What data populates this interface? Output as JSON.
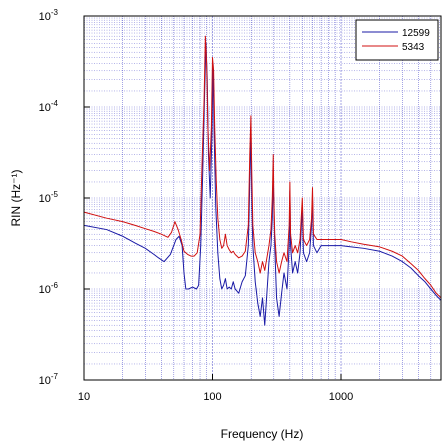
{
  "chart_data": {
    "type": "line",
    "title": "",
    "xlabel": "Frequency (Hz)",
    "ylabel": "RIN (Hz⁻¹)",
    "x_scale": "log",
    "y_scale": "log",
    "xlim": [
      10,
      6000
    ],
    "ylim": [
      1e-07,
      0.001
    ],
    "x_tick_labels": [
      "10",
      "100",
      "1000"
    ],
    "y_tick_labels": [
      {
        "base": "10",
        "exp": "-3"
      },
      {
        "base": "10",
        "exp": "-4"
      },
      {
        "base": "10",
        "exp": "-5"
      },
      {
        "base": "10",
        "exp": "-6"
      },
      {
        "base": "10",
        "exp": "-7"
      }
    ],
    "grid": true,
    "legend": "top-right",
    "series": [
      {
        "name": "12599",
        "color": "#1a1aa6",
        "points": [
          [
            10,
            5e-06
          ],
          [
            15,
            4.5e-06
          ],
          [
            20,
            3.8e-06
          ],
          [
            25,
            3.2e-06
          ],
          [
            30,
            2.8e-06
          ],
          [
            35,
            2.4e-06
          ],
          [
            38,
            2.2e-06
          ],
          [
            42,
            2e-06
          ],
          [
            47,
            2.4e-06
          ],
          [
            52,
            3.5e-06
          ],
          [
            55,
            3.8e-06
          ],
          [
            58,
            3e-06
          ],
          [
            60,
            1.5e-06
          ],
          [
            62,
            1e-06
          ],
          [
            65,
            1e-06
          ],
          [
            70,
            1.05e-06
          ],
          [
            75,
            1e-06
          ],
          [
            78,
            1.1e-06
          ],
          [
            81,
            3e-06
          ],
          [
            84,
            2e-05
          ],
          [
            87,
            0.00016
          ],
          [
            89,
            0.0005
          ],
          [
            91,
            0.0002
          ],
          [
            93,
            3e-05
          ],
          [
            96,
            1e-05
          ],
          [
            99,
            5e-05
          ],
          [
            101,
            0.0003
          ],
          [
            103,
            5e-05
          ],
          [
            106,
            8e-06
          ],
          [
            110,
            2.5e-06
          ],
          [
            114,
            1.3e-06
          ],
          [
            118,
            1e-06
          ],
          [
            122,
            1.1e-06
          ],
          [
            126,
            1.3e-06
          ],
          [
            130,
            1e-06
          ],
          [
            135,
            1.05e-06
          ],
          [
            140,
            1e-06
          ],
          [
            145,
            1.2e-06
          ],
          [
            150,
            1e-06
          ],
          [
            160,
            9e-07
          ],
          [
            170,
            1.2e-06
          ],
          [
            180,
            1.4e-06
          ],
          [
            190,
            3e-06
          ],
          [
            196,
            2e-05
          ],
          [
            199,
            6e-05
          ],
          [
            202,
            1e-05
          ],
          [
            206,
            3e-06
          ],
          [
            215,
            1.2e-06
          ],
          [
            225,
            7e-07
          ],
          [
            235,
            5e-07
          ],
          [
            245,
            8e-07
          ],
          [
            255,
            4e-07
          ],
          [
            265,
            9e-07
          ],
          [
            275,
            2e-06
          ],
          [
            285,
            3e-06
          ],
          [
            292,
            6e-06
          ],
          [
            297,
            2e-05
          ],
          [
            300,
            8e-06
          ],
          [
            305,
            3e-06
          ],
          [
            315,
            8e-07
          ],
          [
            330,
            5e-07
          ],
          [
            345,
            9e-07
          ],
          [
            360,
            1.5e-06
          ],
          [
            380,
            1e-06
          ],
          [
            395,
            3e-06
          ],
          [
            400,
            1.2e-05
          ],
          [
            405,
            3e-06
          ],
          [
            420,
            1.5e-06
          ],
          [
            440,
            2e-06
          ],
          [
            460,
            1.5e-06
          ],
          [
            480,
            2.5e-06
          ],
          [
            500,
            8e-06
          ],
          [
            510,
            2.5e-06
          ],
          [
            540,
            2e-06
          ],
          [
            570,
            2.5e-06
          ],
          [
            590,
            5e-06
          ],
          [
            600,
            1e-05
          ],
          [
            610,
            3e-06
          ],
          [
            650,
            2.5e-06
          ],
          [
            700,
            3e-06
          ],
          [
            800,
            3e-06
          ],
          [
            900,
            3e-06
          ],
          [
            1000,
            3e-06
          ],
          [
            1200,
            2.9e-06
          ],
          [
            1500,
            2.8e-06
          ],
          [
            2000,
            2.6e-06
          ],
          [
            2500,
            2.3e-06
          ],
          [
            3000,
            2e-06
          ],
          [
            3500,
            1.7e-06
          ],
          [
            4000,
            1.4e-06
          ],
          [
            4500,
            1.2e-06
          ],
          [
            5000,
            1e-06
          ],
          [
            5500,
            8.5e-07
          ],
          [
            6000,
            7.5e-07
          ]
        ]
      },
      {
        "name": "5343",
        "color": "#d01010",
        "points": [
          [
            10,
            7e-06
          ],
          [
            15,
            6e-06
          ],
          [
            20,
            5.5e-06
          ],
          [
            25,
            5e-06
          ],
          [
            30,
            4.6e-06
          ],
          [
            35,
            4.3e-06
          ],
          [
            40,
            4e-06
          ],
          [
            45,
            3.7e-06
          ],
          [
            48,
            4.2e-06
          ],
          [
            51,
            5.5e-06
          ],
          [
            54,
            4.5e-06
          ],
          [
            57,
            3.5e-06
          ],
          [
            60,
            2.6e-06
          ],
          [
            64,
            2.4e-06
          ],
          [
            68,
            2.3e-06
          ],
          [
            72,
            2.3e-06
          ],
          [
            76,
            2.5e-06
          ],
          [
            80,
            4e-06
          ],
          [
            83,
            2.5e-05
          ],
          [
            86,
            0.00012
          ],
          [
            88,
            0.0006
          ],
          [
            90,
            0.0003
          ],
          [
            92,
            6e-05
          ],
          [
            95,
            2e-05
          ],
          [
            98,
            6e-05
          ],
          [
            100,
            0.00035
          ],
          [
            102,
            0.00025
          ],
          [
            104,
            6e-05
          ],
          [
            107,
            1.5e-05
          ],
          [
            110,
            6e-06
          ],
          [
            114,
            3.5e-06
          ],
          [
            118,
            2.8e-06
          ],
          [
            122,
            3e-06
          ],
          [
            126,
            4e-06
          ],
          [
            130,
            3e-06
          ],
          [
            135,
            2.7e-06
          ],
          [
            140,
            2.5e-06
          ],
          [
            145,
            2.6e-06
          ],
          [
            150,
            2.4e-06
          ],
          [
            160,
            2.2e-06
          ],
          [
            170,
            2.3e-06
          ],
          [
            180,
            2.6e-06
          ],
          [
            190,
            5e-06
          ],
          [
            195,
            3e-05
          ],
          [
            199,
            8e-05
          ],
          [
            202,
            2e-05
          ],
          [
            206,
            5e-06
          ],
          [
            215,
            2.5e-06
          ],
          [
            225,
            2e-06
          ],
          [
            235,
            1.5e-06
          ],
          [
            245,
            2e-06
          ],
          [
            255,
            1.6e-06
          ],
          [
            265,
            2.2e-06
          ],
          [
            275,
            3e-06
          ],
          [
            285,
            4.5e-06
          ],
          [
            292,
            1e-05
          ],
          [
            297,
            3e-05
          ],
          [
            300,
            1e-05
          ],
          [
            305,
            4e-06
          ],
          [
            315,
            2e-06
          ],
          [
            330,
            1.5e-06
          ],
          [
            345,
            2e-06
          ],
          [
            360,
            2.5e-06
          ],
          [
            380,
            2e-06
          ],
          [
            395,
            5e-06
          ],
          [
            400,
            1.5e-05
          ],
          [
            405,
            4e-06
          ],
          [
            420,
            2.5e-06
          ],
          [
            440,
            3e-06
          ],
          [
            460,
            2.5e-06
          ],
          [
            480,
            3.5e-06
          ],
          [
            500,
            1e-05
          ],
          [
            510,
            3.5e-06
          ],
          [
            540,
            3e-06
          ],
          [
            570,
            3.5e-06
          ],
          [
            590,
            6e-06
          ],
          [
            600,
            1.3e-05
          ],
          [
            610,
            4e-06
          ],
          [
            650,
            3.5e-06
          ],
          [
            700,
            3.5e-06
          ],
          [
            800,
            3.5e-06
          ],
          [
            900,
            3.5e-06
          ],
          [
            1000,
            3.5e-06
          ],
          [
            1200,
            3.3e-06
          ],
          [
            1500,
            3.1e-06
          ],
          [
            2000,
            2.9e-06
          ],
          [
            2500,
            2.6e-06
          ],
          [
            3000,
            2.3e-06
          ],
          [
            3500,
            1.9e-06
          ],
          [
            4000,
            1.6e-06
          ],
          [
            4500,
            1.3e-06
          ],
          [
            5000,
            1.1e-06
          ],
          [
            5500,
            9e-07
          ],
          [
            6000,
            8e-07
          ]
        ]
      }
    ]
  }
}
